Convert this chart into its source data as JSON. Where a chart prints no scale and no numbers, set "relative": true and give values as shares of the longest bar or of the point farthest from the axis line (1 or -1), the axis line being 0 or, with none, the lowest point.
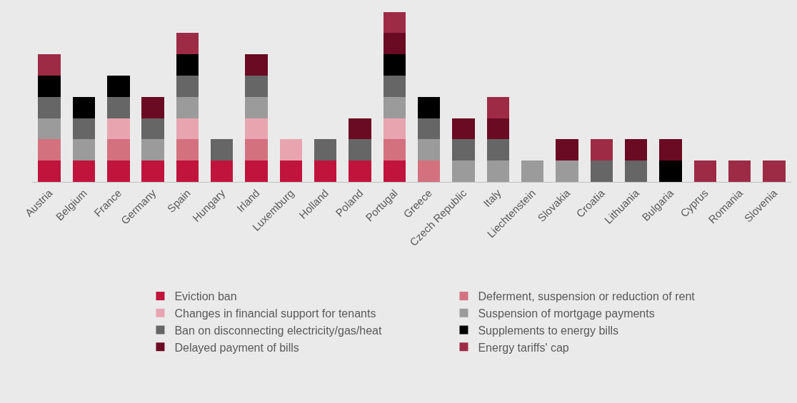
{
  "chart_data": {
    "type": "bar",
    "stacked": true,
    "relative": true,
    "legend": "bottom",
    "categories": [
      "Austria",
      "Belgium",
      "France",
      "Germany",
      "Spain",
      "Hungary",
      "Irland",
      "Luxemburg",
      "Holland",
      "Poland",
      "Portugal",
      "Greece",
      "Czech Republic",
      "Italy",
      "Liechtenstein",
      "Slovakia",
      "Croatia",
      "Lithuania",
      "Bulgaria",
      "Cyprus",
      "Romania",
      "Slovenia"
    ],
    "series": [
      {
        "name": "Eviction ban",
        "color": "#c0143c",
        "values": [
          0.125,
          0.125,
          0.125,
          0.125,
          0.125,
          0.125,
          0.125,
          0.125,
          0.125,
          0.125,
          0.125,
          null,
          null,
          null,
          null,
          null,
          null,
          null,
          null,
          null,
          null,
          null
        ]
      },
      {
        "name": "Deferment, suspension or reduction of rent",
        "color": "#d4717f",
        "values": [
          0.125,
          null,
          0.125,
          null,
          0.125,
          null,
          0.125,
          null,
          null,
          null,
          0.125,
          0.125,
          null,
          null,
          null,
          null,
          null,
          null,
          null,
          null,
          null,
          null
        ]
      },
      {
        "name": "Changes in financial support for tenants",
        "color": "#e8a5b0",
        "values": [
          null,
          null,
          0.125,
          null,
          0.125,
          null,
          0.125,
          0.125,
          null,
          null,
          0.125,
          null,
          null,
          null,
          null,
          null,
          null,
          null,
          null,
          null,
          null,
          null
        ]
      },
      {
        "name": "Suspension of mortgage payments",
        "color": "#9b9b9b",
        "values": [
          0.125,
          0.125,
          null,
          0.125,
          0.125,
          null,
          0.125,
          null,
          null,
          null,
          0.125,
          0.125,
          0.125,
          0.125,
          0.125,
          0.125,
          null,
          null,
          null,
          null,
          null,
          null
        ]
      },
      {
        "name": "Ban on disconnecting electricity/gas/heat",
        "color": "#666666",
        "values": [
          0.125,
          0.125,
          0.125,
          0.125,
          0.125,
          0.125,
          0.125,
          null,
          0.125,
          0.125,
          0.125,
          0.125,
          0.125,
          0.125,
          null,
          null,
          0.125,
          0.125,
          null,
          null,
          null,
          null
        ]
      },
      {
        "name": "Supplements to energy bills",
        "color": "#000000",
        "values": [
          0.125,
          0.125,
          0.125,
          null,
          0.125,
          null,
          null,
          null,
          null,
          null,
          0.125,
          0.125,
          null,
          null,
          null,
          null,
          null,
          null,
          0.125,
          null,
          null,
          null
        ]
      },
      {
        "name": "Delayed payment of bills",
        "color": "#6b0a23",
        "values": [
          null,
          null,
          null,
          0.125,
          null,
          null,
          0.125,
          null,
          null,
          0.125,
          0.125,
          null,
          0.125,
          0.125,
          null,
          0.125,
          null,
          0.125,
          0.125,
          null,
          null,
          null
        ]
      },
      {
        "name": "Energy tariffs' cap",
        "color": "#9e2b45",
        "values": [
          0.125,
          null,
          null,
          null,
          0.125,
          null,
          null,
          null,
          null,
          null,
          0.125,
          null,
          null,
          0.125,
          null,
          null,
          0.125,
          null,
          null,
          0.125,
          0.125,
          0.125
        ]
      }
    ]
  }
}
